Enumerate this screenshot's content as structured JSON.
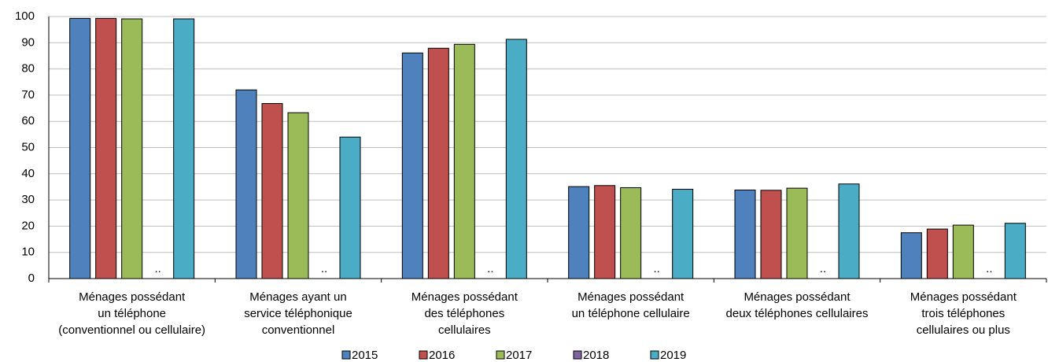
{
  "chart_data": {
    "type": "bar",
    "categories": [
      [
        "Ménages possédant",
        "un téléphone",
        "(conventionnel ou cellulaire)"
      ],
      [
        "Ménages ayant un",
        "service téléphonique",
        "conventionnel"
      ],
      [
        "Ménages possédant",
        "des téléphones",
        "cellulaires"
      ],
      [
        "Ménages possédant",
        "un téléphone cellulaire"
      ],
      [
        "Ménages possédant",
        "deux téléphones cellulaires"
      ],
      [
        "Ménages possédant",
        "trois téléphones",
        "cellulaires ou plus"
      ]
    ],
    "series": [
      {
        "name": "2015",
        "color": "#4f81bd",
        "values": [
          99.3,
          72,
          86.1,
          35.1,
          33.8,
          17.5
        ]
      },
      {
        "name": "2016",
        "color": "#c0504d",
        "values": [
          99.3,
          66.8,
          87.9,
          35.5,
          33.7,
          18.9
        ]
      },
      {
        "name": "2017",
        "color": "#9bbb59",
        "values": [
          99.1,
          63.3,
          89.4,
          34.7,
          34.5,
          20.4
        ]
      },
      {
        "name": "2018",
        "color": "#8064a2",
        "values": [
          null,
          null,
          null,
          null,
          null,
          null
        ],
        "value_labels": [
          "..",
          "..",
          "..",
          "..",
          "..",
          ".."
        ]
      },
      {
        "name": "2019",
        "color": "#4bacc6",
        "values": [
          99.1,
          54,
          91.3,
          34.1,
          36.1,
          21.1
        ]
      }
    ],
    "ylim": [
      0,
      100
    ],
    "yticks": [
      0,
      10,
      20,
      30,
      40,
      50,
      60,
      70,
      80,
      90,
      100
    ],
    "grid": true,
    "legend": "bottom"
  }
}
